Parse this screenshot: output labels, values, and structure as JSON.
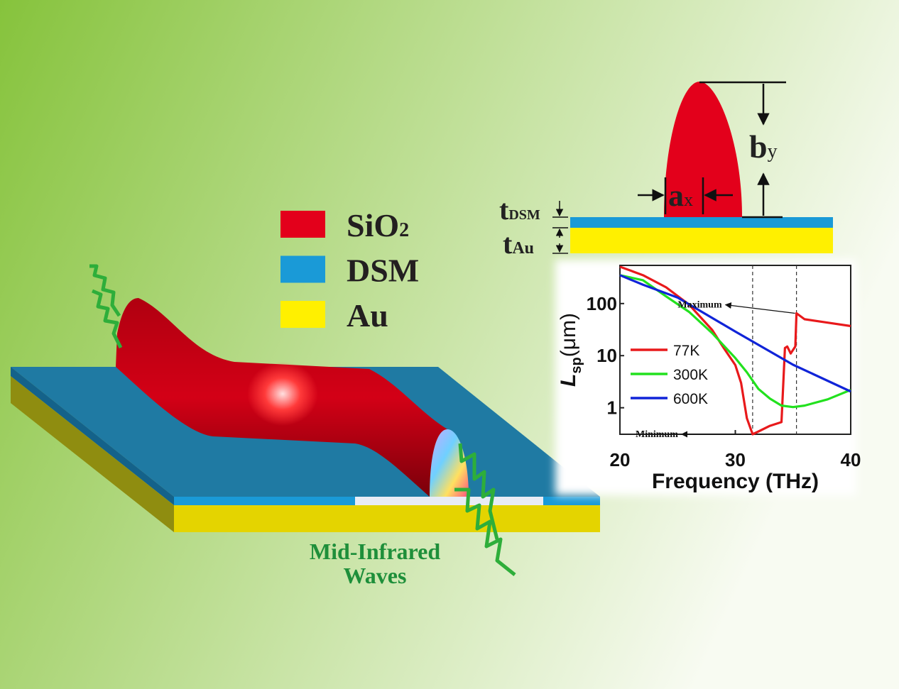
{
  "legend": [
    {
      "name": "SiO",
      "sub": "2",
      "color": "#e3001b"
    },
    {
      "name": "DSM",
      "color": "#1a9ad7"
    },
    {
      "name": "Au",
      "color": "#fff000"
    }
  ],
  "dimensions": {
    "t_dsm": {
      "main": "t",
      "sub": "DSM"
    },
    "t_au": {
      "main": "t",
      "sub": "Au"
    },
    "a_x": {
      "main": "a",
      "sub": "x"
    },
    "b_y": {
      "main": "b",
      "sub": "y"
    }
  },
  "waves_label": [
    "Mid-Infrared",
    "Waves"
  ],
  "chart_data": {
    "type": "line",
    "xlabel": "Frequency (THz)",
    "ylabel": {
      "main": "L",
      "sub": "sp",
      "unit": "(μm)"
    },
    "xlim": [
      20,
      40
    ],
    "xticks": [
      20,
      30,
      40
    ],
    "ylim": [
      0.31,
      540
    ],
    "yticks": [
      1,
      10,
      100
    ],
    "ylog": true,
    "vlines": [
      31.5,
      35.3
    ],
    "legend_position": "left",
    "annotations": [
      {
        "text": "Maximum",
        "x": 35.3,
        "y": 65
      },
      {
        "text": "Minimum",
        "x": 31.5,
        "y": 0.31
      }
    ],
    "series": [
      {
        "name": "77K",
        "color": "#e8191b",
        "x": [
          20,
          22,
          24,
          26,
          28,
          29,
          30,
          30.5,
          31,
          31.5,
          32,
          33,
          34,
          34.3,
          34.5,
          34.8,
          35.2,
          35.3,
          36,
          38,
          40
        ],
        "values": [
          510,
          350,
          205,
          95,
          31,
          14,
          6.6,
          3,
          0.63,
          0.31,
          0.35,
          0.45,
          0.53,
          14,
          15,
          11,
          15,
          65,
          50,
          43,
          37
        ]
      },
      {
        "name": "300K",
        "color": "#22e11e",
        "x": [
          20,
          22,
          24,
          26,
          28,
          30,
          31,
          32,
          33,
          34,
          35,
          36,
          38,
          40
        ],
        "values": [
          350,
          280,
          137,
          69,
          27,
          9,
          4.8,
          2.3,
          1.5,
          1.1,
          1.03,
          1.1,
          1.45,
          2.2
        ]
      },
      {
        "name": "600K",
        "color": "#1024d8",
        "x": [
          20,
          22,
          25,
          30,
          35,
          40
        ],
        "values": [
          350,
          230,
          130,
          29,
          6.7,
          2.05
        ]
      }
    ]
  }
}
